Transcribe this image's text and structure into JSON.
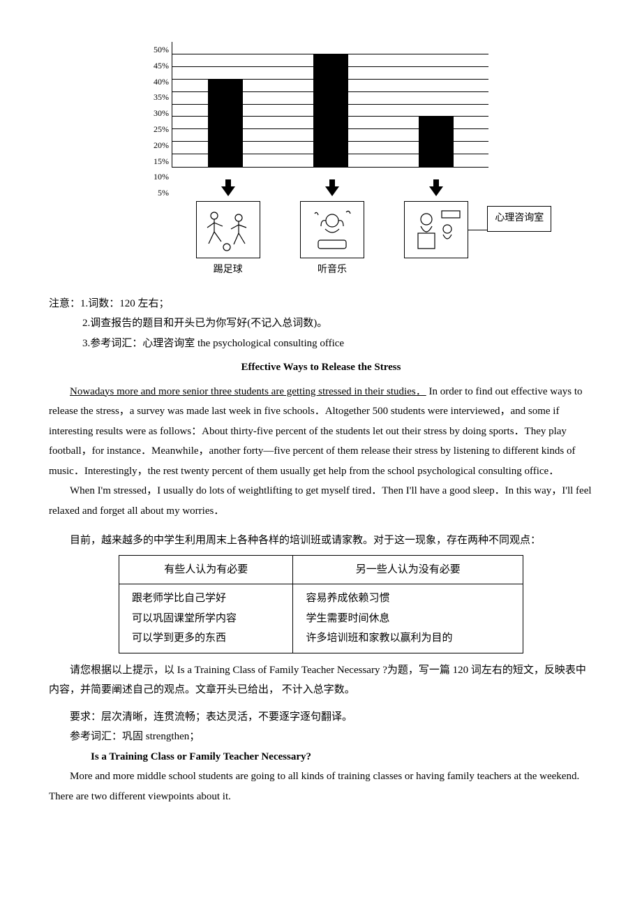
{
  "chart": {
    "type": "bar",
    "y_ticks": [
      "50%",
      "45%",
      "40%",
      "35%",
      "30%",
      "25%",
      "20%",
      "15%",
      "10%",
      "5%"
    ],
    "max_pct": 50,
    "bars": [
      {
        "label": "踢足球",
        "value": 35,
        "color": "#000000"
      },
      {
        "label": "听音乐",
        "value": 45,
        "color": "#000000"
      },
      {
        "label": "",
        "value": 20,
        "color": "#000000"
      }
    ],
    "side_label": "心理咨询室",
    "grid_positions_pct": [
      10,
      20,
      30,
      40,
      50,
      60,
      70,
      80,
      90
    ],
    "bg": "#ffffff",
    "grid_color": "#000000",
    "axis_fontsize": 12
  },
  "notes": {
    "lead": "注意：",
    "n1": "1.词数：120 左右；",
    "n2": "2.调查报告的题目和开头已为你写好(不记入总词数)。",
    "n3": "3.参考词汇：心理咨询室 the psychological consulting office"
  },
  "essay1": {
    "title": "Effective Ways to Release the Stress",
    "lead_underlined": "Nowadays more and more senior three students are getting stressed in their studies．",
    "body1": "In order to find out effective ways to release the stress，a survey was made last week in five schools．Altogether 500 students were interviewed，and some if interesting results were as follows：About thirty-five percent of the students let out their stress by doing sports．They play football，for instance．Meanwhile，another forty—five percent of them release their stress by listening to different kinds of music．Interestingly，the rest twenty percent of them usually get help from the school psychological consulting office．",
    "body2": "When I'm stressed，I usually do lots of weightlifting to get myself tired．Then I'll have a good sleep．In this way，I'll feel relaxed and forget all about my worries．"
  },
  "cn_intro": "目前，越来越多的中学生利用周末上各种各样的培训班或请家教。对于这一现象，存在两种不同观点：",
  "table": {
    "h1": "有些人认为有必要",
    "h2": "另一些人认为没有必要",
    "c1": "跟老师学比自己学好\n可以巩固课堂所学内容\n可以学到更多的东西",
    "c2": "容易养成依赖习惯\n学生需要时间休息\n许多培训班和家教以赢利为目的"
  },
  "cn_after": "请您根据以上提示，以 Is a Training Class of Family Teacher Necessary ?为题，写一篇 120 词左右的短文，反映表中内容，并简要阐述自己的观点。文章开头已给出， 不计入总字数。",
  "cn_req1": "要求：层次清晰，连贯流畅；表达灵活，不要逐字逐句翻译。",
  "cn_req2": "参考词汇：巩固 strengthen；",
  "essay2": {
    "title": "Is a Training Class or Family Teacher Necessary?",
    "body": "More and more middle school students are going to all kinds of training classes or having family teachers at the weekend. There are two different viewpoints about it."
  }
}
